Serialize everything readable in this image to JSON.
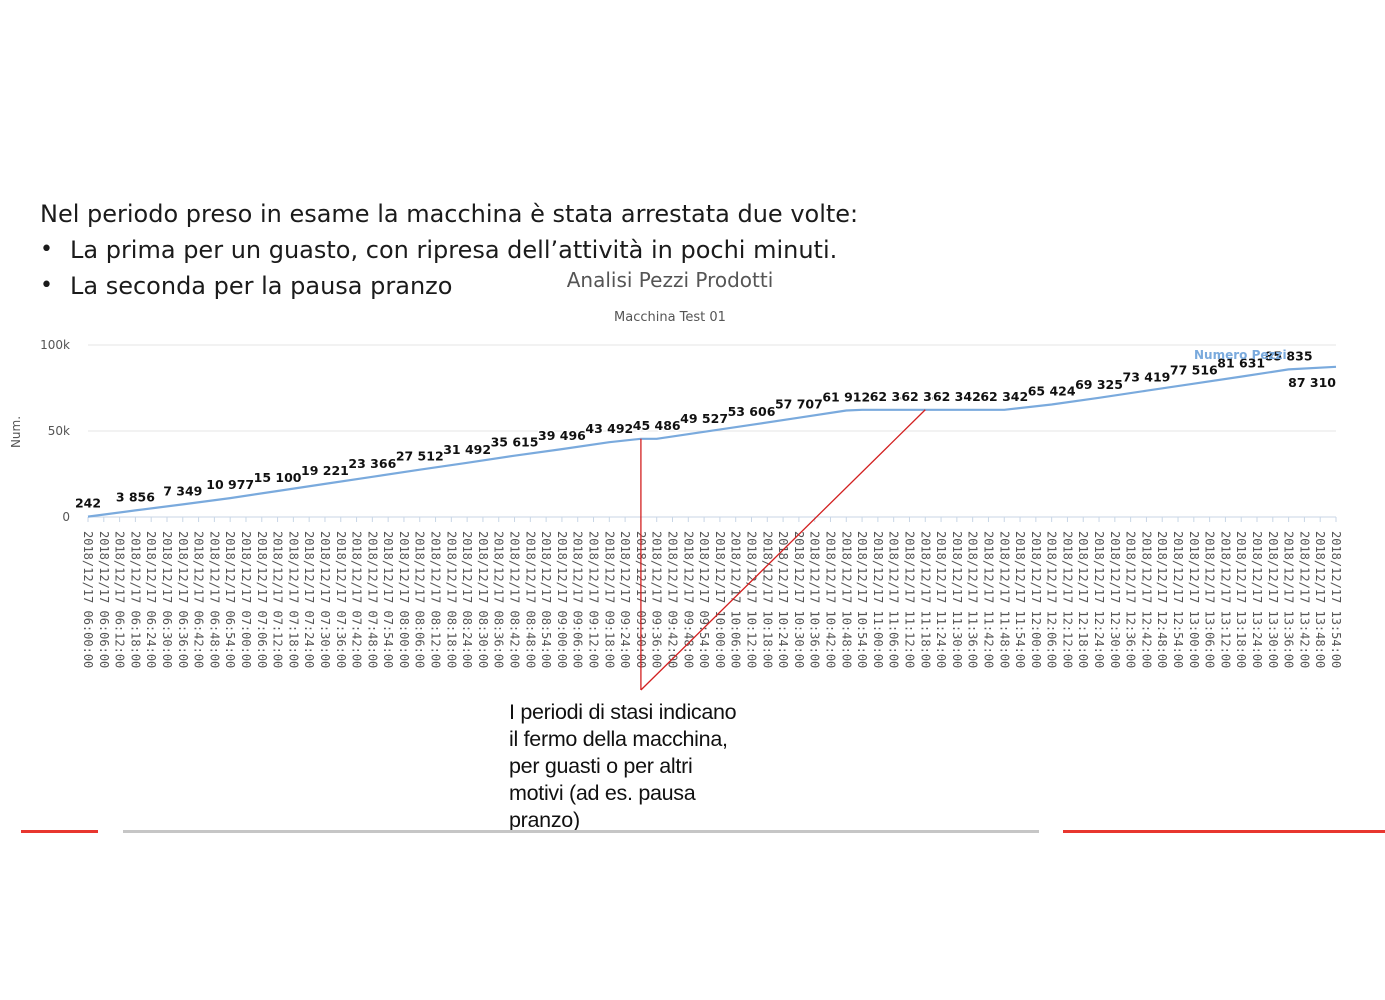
{
  "slide": {
    "intro": "Nel periodo preso in esame la macchina è stata arrestata due volte:",
    "bullets": [
      "La prima per un guasto, con ripresa dell’attività in pochi minuti.",
      "La seconda per la pausa pranzo"
    ],
    "bullet_symbol": "•",
    "annotation": "I periodi di stasi indicano\nil fermo della macchina,\nper guasti o per altri\nmotivi (ad es. pausa\npranzo)",
    "colors": {
      "accent_red": "#e8362f",
      "rule_gray": "#c6c6c6",
      "arrow_red": "#d22020"
    }
  },
  "chart_data": {
    "type": "line",
    "title": "Analisi Pezzi Prodotti",
    "subtitle": "Macchina Test 01",
    "ylabel": "Num.",
    "xlabel": "",
    "ylim": [
      0,
      100000
    ],
    "y_ticks": [
      0,
      50000,
      100000
    ],
    "y_tick_labels": [
      "0",
      "50k",
      "100k"
    ],
    "grid": true,
    "legend": {
      "position": "top-right",
      "entries": [
        "Numero Pezzi"
      ]
    },
    "line_color": "#7aaadd",
    "x_labels": [
      "2018/12/17 06:00:00",
      "2018/12/17 06:06:00",
      "2018/12/17 06:12:00",
      "2018/12/17 06:18:00",
      "2018/12/17 06:24:00",
      "2018/12/17 06:30:00",
      "2018/12/17 06:36:00",
      "2018/12/17 06:42:00",
      "2018/12/17 06:48:00",
      "2018/12/17 06:54:00",
      "2018/12/17 07:00:00",
      "2018/12/17 07:06:00",
      "2018/12/17 07:12:00",
      "2018/12/17 07:18:00",
      "2018/12/17 07:24:00",
      "2018/12/17 07:30:00",
      "2018/12/17 07:36:00",
      "2018/12/17 07:42:00",
      "2018/12/17 07:48:00",
      "2018/12/17 07:54:00",
      "2018/12/17 08:00:00",
      "2018/12/17 08:06:00",
      "2018/12/17 08:12:00",
      "2018/12/17 08:18:00",
      "2018/12/17 08:24:00",
      "2018/12/17 08:30:00",
      "2018/12/17 08:36:00",
      "2018/12/17 08:42:00",
      "2018/12/17 08:48:00",
      "2018/12/17 08:54:00",
      "2018/12/17 09:00:00",
      "2018/12/17 09:06:00",
      "2018/12/17 09:12:00",
      "2018/12/17 09:18:00",
      "2018/12/17 09:24:00",
      "2018/12/17 09:30:00",
      "2018/12/17 09:36:00",
      "2018/12/17 09:42:00",
      "2018/12/17 09:48:00",
      "2018/12/17 09:54:00",
      "2018/12/17 10:00:00",
      "2018/12/17 10:06:00",
      "2018/12/17 10:12:00",
      "2018/12/17 10:18:00",
      "2018/12/17 10:24:00",
      "2018/12/17 10:30:00",
      "2018/12/17 10:36:00",
      "2018/12/17 10:42:00",
      "2018/12/17 10:48:00",
      "2018/12/17 10:54:00",
      "2018/12/17 11:00:00",
      "2018/12/17 11:06:00",
      "2018/12/17 11:12:00",
      "2018/12/17 11:18:00",
      "2018/12/17 11:24:00",
      "2018/12/17 11:30:00",
      "2018/12/17 11:36:00",
      "2018/12/17 11:42:00",
      "2018/12/17 11:48:00",
      "2018/12/17 11:54:00",
      "2018/12/17 12:00:00",
      "2018/12/17 12:06:00",
      "2018/12/17 12:12:00",
      "2018/12/17 12:18:00",
      "2018/12/17 12:24:00",
      "2018/12/17 12:30:00",
      "2018/12/17 12:36:00",
      "2018/12/17 12:42:00",
      "2018/12/17 12:48:00",
      "2018/12/17 12:54:00",
      "2018/12/17 13:00:00",
      "2018/12/17 13:06:00",
      "2018/12/17 13:12:00",
      "2018/12/17 13:18:00",
      "2018/12/17 13:24:00",
      "2018/12/17 13:30:00",
      "2018/12/17 13:36:00",
      "2018/12/17 13:42:00",
      "2018/12/17 13:48:00",
      "2018/12/17 13:54:00"
    ],
    "series": [
      {
        "name": "Numero Pezzi",
        "points": [
          {
            "x": "2018/12/17 06:00:00",
            "y": 242,
            "label": "242"
          },
          {
            "x": "2018/12/17 06:18:00",
            "y": 3856,
            "label": "3 856"
          },
          {
            "x": "2018/12/17 06:36:00",
            "y": 7349,
            "label": "7 349"
          },
          {
            "x": "2018/12/17 06:54:00",
            "y": 10977,
            "label": "10 977"
          },
          {
            "x": "2018/12/17 07:12:00",
            "y": 15100,
            "label": "15 100"
          },
          {
            "x": "2018/12/17 07:30:00",
            "y": 19221,
            "label": "19 221"
          },
          {
            "x": "2018/12/17 07:48:00",
            "y": 23366,
            "label": "23 366"
          },
          {
            "x": "2018/12/17 08:06:00",
            "y": 27512,
            "label": "27 512"
          },
          {
            "x": "2018/12/17 08:24:00",
            "y": 31492,
            "label": "31 492"
          },
          {
            "x": "2018/12/17 08:42:00",
            "y": 35615,
            "label": "35 615"
          },
          {
            "x": "2018/12/17 09:00:00",
            "y": 39496,
            "label": "39 496"
          },
          {
            "x": "2018/12/17 09:18:00",
            "y": 43492,
            "label": "43 492"
          },
          {
            "x": "2018/12/17 09:30:00",
            "y": 45486,
            "label": "",
            "role": "stop1-start"
          },
          {
            "x": "2018/12/17 09:36:00",
            "y": 45486,
            "label": "45 486"
          },
          {
            "x": "2018/12/17 09:54:00",
            "y": 49527,
            "label": "49 527"
          },
          {
            "x": "2018/12/17 10:12:00",
            "y": 53606,
            "label": "53 606"
          },
          {
            "x": "2018/12/17 10:30:00",
            "y": 57707,
            "label": "57 707"
          },
          {
            "x": "2018/12/17 10:48:00",
            "y": 61912,
            "label": "61 912"
          },
          {
            "x": "2018/12/17 10:54:00",
            "y": 62342,
            "label": ""
          },
          {
            "x": "2018/12/17 11:06:00",
            "y": 62342,
            "label": "62 342"
          },
          {
            "x": "2018/12/17 11:18:00",
            "y": 62342,
            "label": "62 342",
            "role": "stop2-marker"
          },
          {
            "x": "2018/12/17 11:30:00",
            "y": 62342,
            "label": "62 342"
          },
          {
            "x": "2018/12/17 11:48:00",
            "y": 62342,
            "label": "62 342"
          },
          {
            "x": "2018/12/17 12:06:00",
            "y": 65424,
            "label": "65 424"
          },
          {
            "x": "2018/12/17 12:24:00",
            "y": 69325,
            "label": "69 325"
          },
          {
            "x": "2018/12/17 12:42:00",
            "y": 73419,
            "label": "73 419"
          },
          {
            "x": "2018/12/17 13:00:00",
            "y": 77516,
            "label": "77 516"
          },
          {
            "x": "2018/12/17 13:18:00",
            "y": 81631,
            "label": "81 631"
          },
          {
            "x": "2018/12/17 13:36:00",
            "y": 85835,
            "label": "85 835"
          },
          {
            "x": "2018/12/17 13:54:00",
            "y": 87310,
            "label": "87 310",
            "label_below": true
          }
        ]
      }
    ]
  }
}
